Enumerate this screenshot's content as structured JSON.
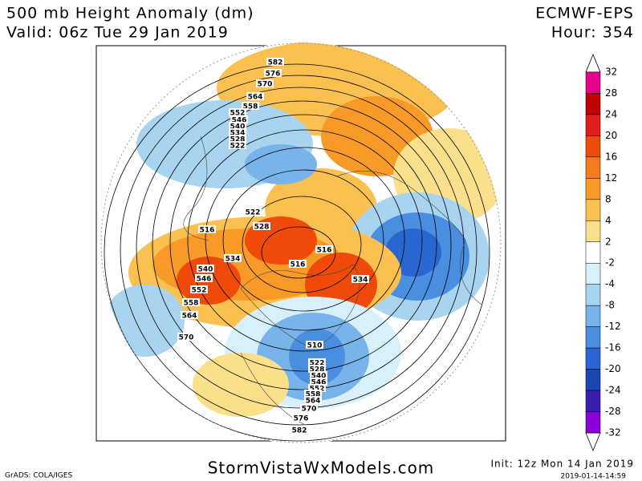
{
  "header": {
    "title": "500 mb Height Anomaly (dm)",
    "valid": "Valid: 06z Tue 29 Jan 2019",
    "model": "ECMWF-EPS",
    "hour": "Hour: 354"
  },
  "footer": {
    "credit": "GrADS: COLA/IGES",
    "site": "StormVistaWxModels.com",
    "init": "Init: 12z Mon 14 Jan 2019",
    "stamp": "2019-01-14-14:59"
  },
  "colorbar": {
    "labels": [
      32,
      28,
      24,
      20,
      16,
      12,
      8,
      4,
      2,
      -2,
      -4,
      -8,
      -12,
      -16,
      -20,
      -24,
      -28,
      -32
    ],
    "colors": [
      "#e6008c",
      "#c00000",
      "#e01e1e",
      "#f04a0a",
      "#f47a1e",
      "#f89a28",
      "#fac050",
      "#fbe08c",
      "#ffffff",
      "#d8f0fa",
      "#a8d4f0",
      "#78b4ea",
      "#4a8ee0",
      "#2a66d2",
      "#1a46b0",
      "#3a1eb0",
      "#8a00d8"
    ]
  },
  "contour_labels": [
    "582",
    "576",
    "570",
    "564",
    "558",
    "552",
    "546",
    "540",
    "534",
    "528",
    "522",
    "522",
    "528",
    "516",
    "534",
    "540",
    "546",
    "552",
    "558",
    "564",
    "570",
    "516",
    "516",
    "534",
    "510",
    "522",
    "528",
    "540",
    "546",
    "552",
    "558",
    "564",
    "570",
    "576",
    "582"
  ]
}
